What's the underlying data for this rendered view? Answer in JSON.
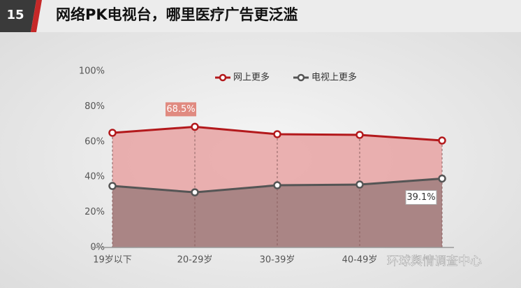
{
  "header": {
    "number": "15",
    "title": "网络PK电视台，哪里医疗广告更泛滥"
  },
  "chart_data": {
    "type": "line",
    "categories": [
      "19岁以下",
      "20-29岁",
      "30-39岁",
      "40-49岁",
      null
    ],
    "series": [
      {
        "name": "网上更多",
        "color": "#b3191c",
        "fill": "#e7a3a3",
        "values": [
          65.1,
          68.5,
          64.3,
          63.9,
          60.7
        ],
        "value_labels": [
          null,
          "68.5%",
          null,
          null,
          null
        ]
      },
      {
        "name": "电视上更多",
        "color": "#555555",
        "fill": "#a78383",
        "values": [
          34.9,
          31.3,
          35.3,
          35.7,
          39.1
        ],
        "value_labels": [
          null,
          null,
          null,
          null,
          "39.1%"
        ]
      }
    ],
    "ylim": [
      0,
      100
    ],
    "yticks": [
      {
        "value": 0,
        "label": "0%"
      },
      {
        "value": 20,
        "label": "20%"
      },
      {
        "value": 40,
        "label": "40%"
      },
      {
        "value": 60,
        "label": "60%"
      },
      {
        "value": 80,
        "label": "80%"
      },
      {
        "value": 100,
        "label": "100%"
      }
    ],
    "legend": "top"
  },
  "watermark": "环球舆情调查中心"
}
